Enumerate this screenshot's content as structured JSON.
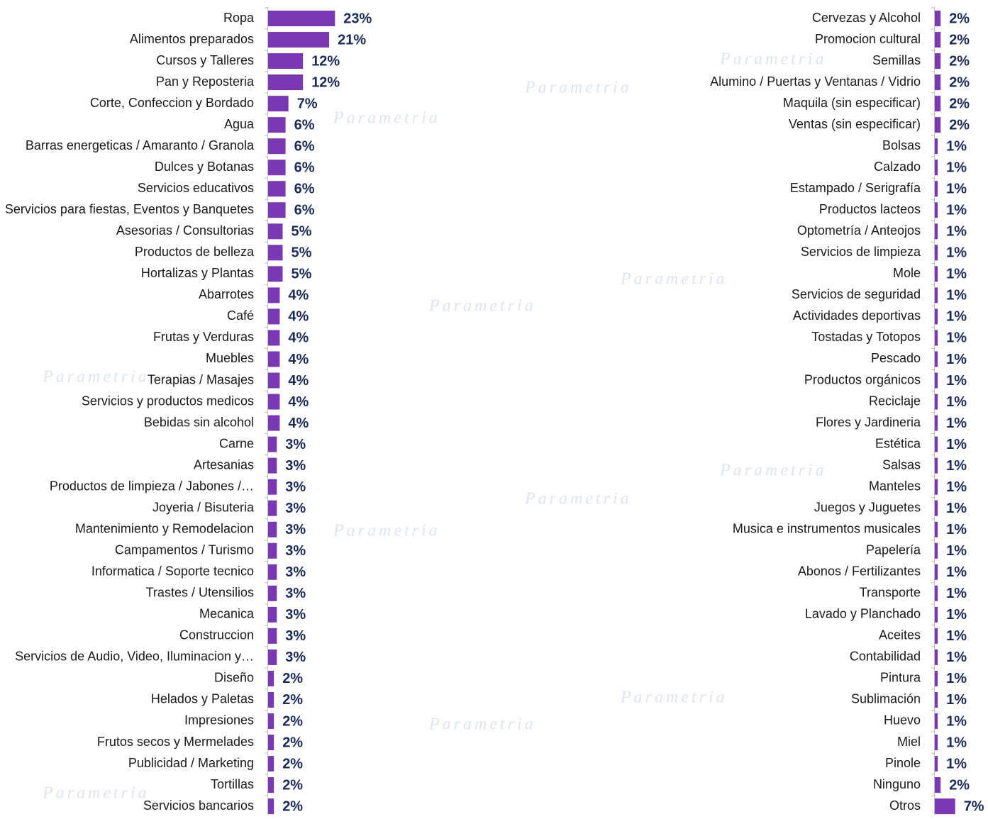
{
  "chart_data": [
    {
      "type": "bar",
      "orientation": "horizontal",
      "color": "#7a38b2",
      "categories": [
        "Ropa",
        "Alimentos preparados",
        "Cursos y Talleres",
        "Pan y Reposteria",
        "Corte, Confeccion y Bordado",
        "Agua",
        "Barras energeticas / Amaranto / Granola",
        "Dulces y Botanas",
        "Servicios educativos",
        "Servicios para fiestas, Eventos y Banquetes",
        "Asesorias / Consultorias",
        "Productos de belleza",
        "Hortalizas y Plantas",
        "Abarrotes",
        "Café",
        "Frutas y Verduras",
        "Muebles",
        "Terapias / Masajes",
        "Servicios y productos medicos",
        "Bebidas sin alcohol",
        "Carne",
        "Artesanias",
        "Productos de limpieza / Jabones /…",
        "Joyeria / Bisuteria",
        "Mantenimiento y Remodelacion",
        "Campamentos / Turismo",
        "Informatica / Soporte tecnico",
        "Trastes / Utensilios",
        "Mecanica",
        "Construccion",
        "Servicios de Audio, Video, Iluminacion y…",
        "Diseño",
        "Helados y Paletas",
        "Impresiones",
        "Frutos secos y Mermelades",
        "Publicidad / Marketing",
        "Tortillas",
        "Servicios bancarios"
      ],
      "values": [
        23,
        21,
        12,
        12,
        7,
        6,
        6,
        6,
        6,
        6,
        5,
        5,
        5,
        4,
        4,
        4,
        4,
        4,
        4,
        4,
        3,
        3,
        3,
        3,
        3,
        3,
        3,
        3,
        3,
        3,
        3,
        2,
        2,
        2,
        2,
        2,
        2,
        2
      ],
      "value_labels": [
        "23%",
        "21%",
        "12%",
        "12%",
        "7%",
        "6%",
        "6%",
        "6%",
        "6%",
        "6%",
        "5%",
        "5%",
        "5%",
        "4%",
        "4%",
        "4%",
        "4%",
        "4%",
        "4%",
        "4%",
        "3%",
        "3%",
        "3%",
        "3%",
        "3%",
        "3%",
        "3%",
        "3%",
        "3%",
        "3%",
        "3%",
        "2%",
        "2%",
        "2%",
        "2%",
        "2%",
        "2%",
        "2%"
      ]
    },
    {
      "type": "bar",
      "orientation": "horizontal",
      "color": "#7a38b2",
      "categories": [
        "Cervezas y Alcohol",
        "Promocion cultural",
        "Semillas",
        "Alumino / Puertas y Ventanas / Vidrio",
        "Maquila (sin especificar)",
        "Ventas (sin especificar)",
        "Bolsas",
        "Calzado",
        "Estampado / Serigrafía",
        "Productos lacteos",
        "Optometría / Anteojos",
        "Servicios de limpieza",
        "Mole",
        "Servicios de seguridad",
        "Actividades deportivas",
        "Tostadas y Totopos",
        "Pescado",
        "Productos orgánicos",
        "Reciclaje",
        "Flores y Jardineria",
        "Estética",
        "Salsas",
        "Manteles",
        "Juegos y Juguetes",
        "Musica e instrumentos musicales",
        "Papelería",
        "Abonos / Fertilizantes",
        "Transporte",
        "Lavado y Planchado",
        "Aceites",
        "Contabilidad",
        "Pintura",
        "Sublimación",
        "Huevo",
        "Miel",
        "Pinole",
        "Ninguno",
        "Otros"
      ],
      "values": [
        2,
        2,
        2,
        2,
        2,
        2,
        1,
        1,
        1,
        1,
        1,
        1,
        1,
        1,
        1,
        1,
        1,
        1,
        1,
        1,
        1,
        1,
        1,
        1,
        1,
        1,
        1,
        1,
        1,
        1,
        1,
        1,
        1,
        1,
        1,
        1,
        2,
        7
      ],
      "value_labels": [
        "2%",
        "2%",
        "2%",
        "2%",
        "2%",
        "2%",
        "1%",
        "1%",
        "1%",
        "1%",
        "1%",
        "1%",
        "1%",
        "1%",
        "1%",
        "1%",
        "1%",
        "1%",
        "1%",
        "1%",
        "1%",
        "1%",
        "1%",
        "1%",
        "1%",
        "1%",
        "1%",
        "1%",
        "1%",
        "1%",
        "1%",
        "1%",
        "1%",
        "1%",
        "1%",
        "1%",
        "2%",
        "7%"
      ]
    }
  ]
}
